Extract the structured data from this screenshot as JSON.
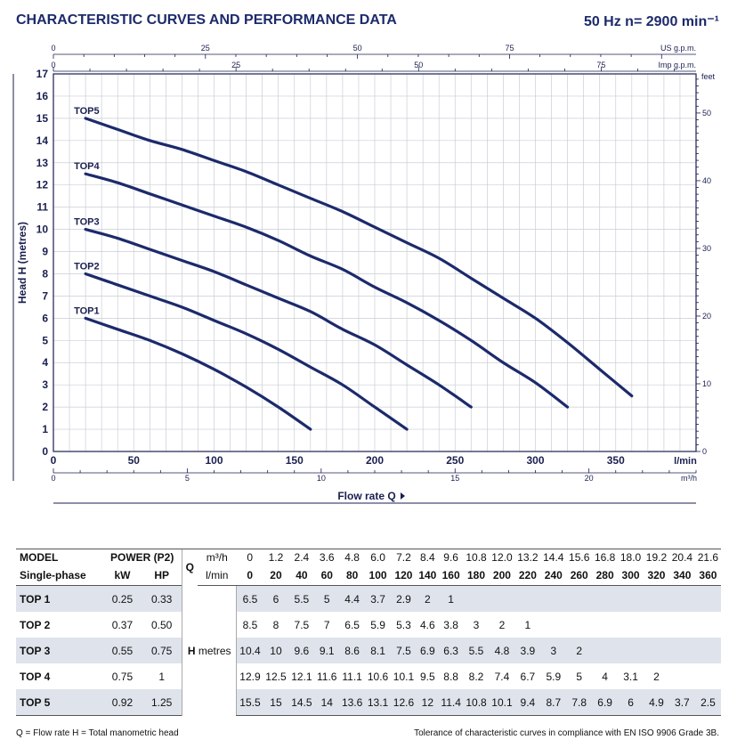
{
  "header": {
    "title": "CHARACTERISTIC CURVES AND PERFORMANCE DATA",
    "speed": "50 Hz   n= 2900 min⁻¹"
  },
  "chart_data": {
    "type": "line",
    "xlabel": "Flow rate  Q",
    "ylabel": "Head H (metres)",
    "x_unit": "l/min",
    "x_ticks": [
      0,
      50,
      100,
      150,
      200,
      250,
      300,
      350
    ],
    "xlim": [
      0,
      400
    ],
    "ylim": [
      0,
      17
    ],
    "y_ticks": [
      0,
      1,
      2,
      3,
      4,
      5,
      6,
      7,
      8,
      9,
      10,
      11,
      12,
      13,
      14,
      15,
      16,
      17
    ],
    "grid": true,
    "secondary_axes": {
      "us_gpm": {
        "label": "US g.p.m.",
        "ticks": [
          "0",
          "25",
          "50",
          "75"
        ]
      },
      "imp_gpm": {
        "label": "Imp g.p.m.",
        "ticks": [
          "0",
          "25",
          "50",
          "75"
        ]
      },
      "m3h": {
        "label": "m³/h",
        "ticks": [
          "0",
          "5",
          "10",
          "15",
          "20"
        ]
      },
      "feet": {
        "label": "feet",
        "ticks": [
          "0",
          "10",
          "20",
          "30",
          "40",
          "50"
        ]
      }
    },
    "series": [
      {
        "name": "TOP1",
        "color": "#1c2a6b",
        "x": [
          20,
          40,
          60,
          80,
          100,
          120,
          140,
          160
        ],
        "y": [
          6,
          5.5,
          5,
          4.4,
          3.7,
          2.9,
          2,
          1
        ]
      },
      {
        "name": "TOP2",
        "color": "#1c2a6b",
        "x": [
          20,
          40,
          60,
          80,
          100,
          120,
          140,
          160,
          180,
          200,
          220
        ],
        "y": [
          8,
          7.5,
          7,
          6.5,
          5.9,
          5.3,
          4.6,
          3.8,
          3,
          2,
          1
        ]
      },
      {
        "name": "TOP3",
        "color": "#1c2a6b",
        "x": [
          20,
          40,
          60,
          80,
          100,
          120,
          140,
          160,
          180,
          200,
          220,
          240,
          260
        ],
        "y": [
          10,
          9.6,
          9.1,
          8.6,
          8.1,
          7.5,
          6.9,
          6.3,
          5.5,
          4.8,
          3.9,
          3,
          2
        ]
      },
      {
        "name": "TOP4",
        "color": "#1c2a6b",
        "x": [
          20,
          40,
          60,
          80,
          100,
          120,
          140,
          160,
          180,
          200,
          220,
          240,
          260,
          280,
          300,
          320
        ],
        "y": [
          12.5,
          12.1,
          11.6,
          11.1,
          10.6,
          10.1,
          9.5,
          8.8,
          8.2,
          7.4,
          6.7,
          5.9,
          5,
          4,
          3.1,
          2
        ]
      },
      {
        "name": "TOP5",
        "color": "#1c2a6b",
        "x": [
          20,
          40,
          60,
          80,
          100,
          120,
          140,
          160,
          180,
          200,
          220,
          240,
          260,
          280,
          300,
          320,
          340,
          360
        ],
        "y": [
          15,
          14.5,
          14,
          13.6,
          13.1,
          12.6,
          12,
          11.4,
          10.8,
          10.1,
          9.4,
          8.7,
          7.8,
          6.9,
          6,
          4.9,
          3.7,
          2.5
        ]
      }
    ]
  },
  "table": {
    "h_model": "MODEL",
    "h_single": "Single-phase",
    "h_power": "POWER (P2)",
    "h_kw": "kW",
    "h_hp": "HP",
    "h_q": "Q",
    "h_m3h": "m³/h",
    "h_lmin": "l/min",
    "h_H": "H",
    "h_metres": "metres",
    "m3h": [
      "0",
      "1.2",
      "2.4",
      "3.6",
      "4.8",
      "6.0",
      "7.2",
      "8.4",
      "9.6",
      "10.8",
      "12.0",
      "13.2",
      "14.4",
      "15.6",
      "16.8",
      "18.0",
      "19.2",
      "20.4",
      "21.6"
    ],
    "lmin": [
      "0",
      "20",
      "40",
      "60",
      "80",
      "100",
      "120",
      "140",
      "160",
      "180",
      "200",
      "220",
      "240",
      "260",
      "280",
      "300",
      "320",
      "340",
      "360"
    ],
    "rows": [
      {
        "model": "TOP 1",
        "kw": "0.25",
        "hp": "0.33",
        "h": [
          "6.5",
          "6",
          "5.5",
          "5",
          "4.4",
          "3.7",
          "2.9",
          "2",
          "1",
          "",
          "",
          "",
          "",
          "",
          "",
          "",
          "",
          "",
          ""
        ]
      },
      {
        "model": "TOP 2",
        "kw": "0.37",
        "hp": "0.50",
        "h": [
          "8.5",
          "8",
          "7.5",
          "7",
          "6.5",
          "5.9",
          "5.3",
          "4.6",
          "3.8",
          "3",
          "2",
          "1",
          "",
          "",
          "",
          "",
          "",
          "",
          ""
        ]
      },
      {
        "model": "TOP 3",
        "kw": "0.55",
        "hp": "0.75",
        "h": [
          "10.4",
          "10",
          "9.6",
          "9.1",
          "8.6",
          "8.1",
          "7.5",
          "6.9",
          "6.3",
          "5.5",
          "4.8",
          "3.9",
          "3",
          "2",
          "",
          "",
          "",
          "",
          ""
        ]
      },
      {
        "model": "TOP 4",
        "kw": "0.75",
        "hp": "1",
        "h": [
          "12.9",
          "12.5",
          "12.1",
          "11.6",
          "11.1",
          "10.6",
          "10.1",
          "9.5",
          "8.8",
          "8.2",
          "7.4",
          "6.7",
          "5.9",
          "5",
          "4",
          "3.1",
          "2",
          "",
          ""
        ]
      },
      {
        "model": "TOP 5",
        "kw": "0.92",
        "hp": "1.25",
        "h": [
          "15.5",
          "15",
          "14.5",
          "14",
          "13.6",
          "13.1",
          "12.6",
          "12",
          "11.4",
          "10.8",
          "10.1",
          "9.4",
          "8.7",
          "7.8",
          "6.9",
          "6",
          "4.9",
          "3.7",
          "2.5"
        ]
      }
    ]
  },
  "footer": {
    "left": "Q = Flow rate  H = Total manometric head",
    "right": "Tolerance of characteristic curves in compliance with EN ISO 9906 Grade 3B."
  }
}
